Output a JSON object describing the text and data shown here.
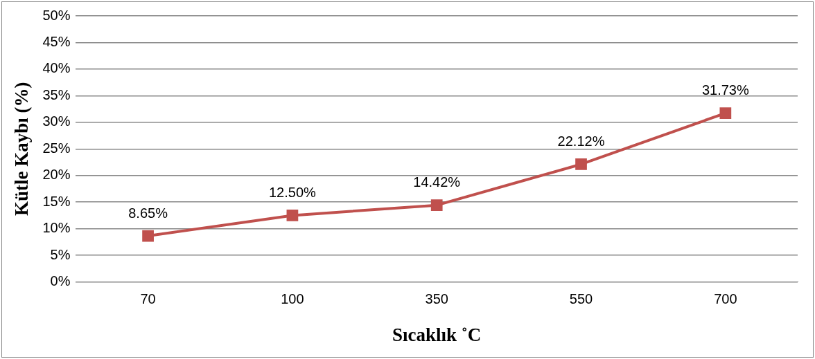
{
  "chart_data": {
    "type": "line",
    "xlabel": "Sıcaklık ˚C",
    "ylabel": "Kütle Kaybı (%)",
    "categories": [
      "70",
      "100",
      "350",
      "550",
      "700"
    ],
    "series": [
      {
        "color": "#c0504d",
        "values": [
          8.65,
          12.5,
          14.42,
          22.12,
          31.73
        ]
      }
    ],
    "value_labels": [
      "8.65%",
      "12.50%",
      "14.42%",
      "22.12%",
      "31.73%"
    ],
    "ylim": [
      0,
      50
    ],
    "yticks": [
      {
        "value": 0,
        "label": "0%"
      },
      {
        "value": 5,
        "label": "5%"
      },
      {
        "value": 10,
        "label": "10%"
      },
      {
        "value": 15,
        "label": "15%"
      },
      {
        "value": 20,
        "label": "20%"
      },
      {
        "value": 25,
        "label": "25%"
      },
      {
        "value": 30,
        "label": "30%"
      },
      {
        "value": 35,
        "label": "35%"
      },
      {
        "value": 40,
        "label": "40%"
      },
      {
        "value": 45,
        "label": "45%"
      },
      {
        "value": 50,
        "label": "50%"
      }
    ],
    "grid": "y",
    "legend": false,
    "marker": "square",
    "line_style": "solid"
  }
}
